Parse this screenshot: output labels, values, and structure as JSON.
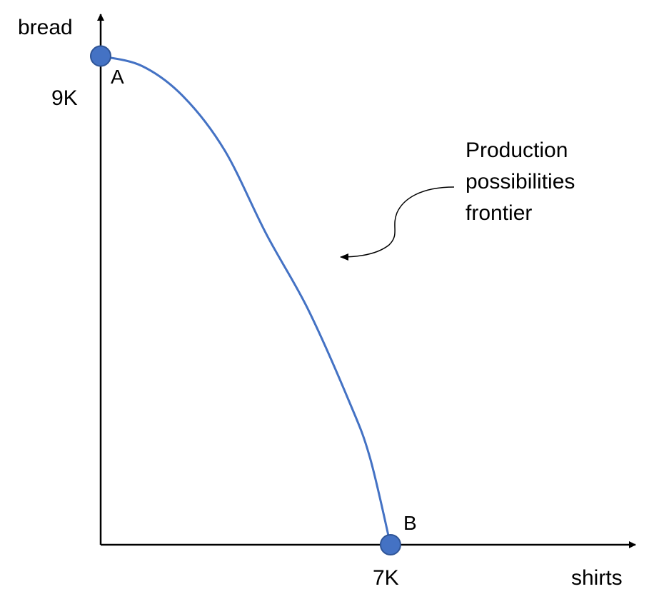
{
  "chart_data": {
    "type": "line",
    "xlabel": "shirts",
    "ylabel": "bread",
    "x_tick_labels": [
      "7K"
    ],
    "y_tick_labels": [
      "9K"
    ],
    "xlim": [
      0,
      12916
    ],
    "ylim": [
      0,
      9770
    ],
    "grid": false,
    "series": [
      {
        "color": "#4472c4",
        "x": [
          0,
          1000,
          2000,
          3000,
          4000,
          5000,
          6000,
          6500,
          7000
        ],
        "y": [
          9000,
          8817,
          8253,
          7257,
          5722,
          4348,
          2643,
          1616,
          0
        ]
      }
    ],
    "points": [
      {
        "label": "A",
        "x": 0,
        "y": 9000
      },
      {
        "label": "B",
        "x": 7000,
        "y": 0
      }
    ],
    "annotations": [
      {
        "lines": [
          "Production",
          "possibilities",
          "frontier"
        ]
      }
    ],
    "colors": {
      "curve": "#4472c4",
      "marker": "#4472c4",
      "marker_edge": "#2f5597",
      "axis": "#000000"
    }
  }
}
